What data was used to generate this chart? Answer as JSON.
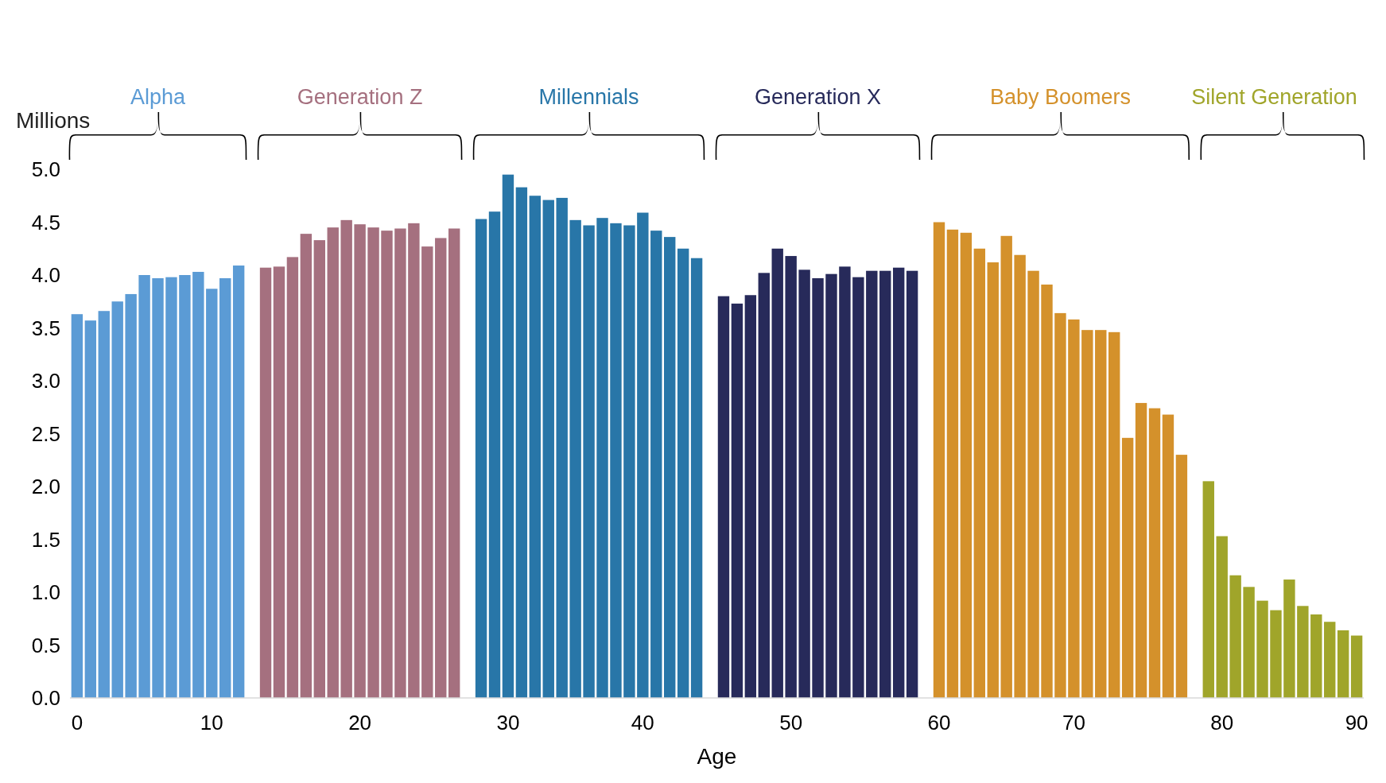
{
  "chart_data": {
    "type": "bar",
    "xlabel": "Age",
    "ylabel": "Millions",
    "categories": [
      "0",
      null,
      null,
      null,
      null,
      null,
      null,
      null,
      null,
      null,
      "10",
      null,
      null,
      null,
      null,
      null,
      null,
      null,
      null,
      null,
      null,
      "20",
      null,
      null,
      null,
      null,
      null,
      null,
      null,
      null,
      null,
      null,
      "30",
      null,
      null,
      null,
      null,
      null,
      null,
      null,
      null,
      null,
      "40",
      null,
      null,
      null,
      null,
      null,
      null,
      null,
      null,
      null,
      null,
      "50",
      null,
      null,
      null,
      null,
      null,
      null,
      null,
      null,
      null,
      null,
      "60",
      null,
      null,
      null,
      null,
      null,
      null,
      null,
      null,
      null,
      "70",
      null,
      null,
      null,
      null,
      null,
      null,
      null,
      null,
      null,
      null,
      "80",
      null,
      null,
      null,
      null,
      null,
      null,
      null,
      null,
      null,
      "90"
    ],
    "series": [
      {
        "name": "Alpha",
        "color": "#5b9bd5",
        "values": [
          3.63,
          3.57,
          3.66,
          3.75,
          3.82,
          4.0,
          3.97,
          3.98,
          4.0,
          4.03,
          3.87,
          3.97,
          4.09,
          null,
          null,
          null,
          null,
          null,
          null,
          null,
          null,
          null,
          null,
          null,
          null,
          null,
          null,
          null,
          null,
          null,
          null,
          null,
          null,
          null,
          null,
          null,
          null,
          null,
          null,
          null,
          null,
          null,
          null,
          null,
          null,
          null,
          null,
          null,
          null,
          null,
          null,
          null,
          null,
          null,
          null,
          null,
          null,
          null,
          null,
          null,
          null,
          null,
          null,
          null,
          null,
          null,
          null,
          null,
          null,
          null,
          null,
          null,
          null,
          null,
          null,
          null,
          null,
          null,
          null,
          null,
          null,
          null,
          null,
          null,
          null,
          null,
          null,
          null,
          null,
          null,
          null,
          null,
          null,
          null,
          null,
          null
        ]
      },
      {
        "name": "Generation Z",
        "color": "#a5707f",
        "values": [
          null,
          null,
          null,
          null,
          null,
          null,
          null,
          null,
          null,
          null,
          null,
          null,
          null,
          null,
          4.07,
          4.08,
          4.17,
          4.39,
          4.33,
          4.45,
          4.52,
          4.48,
          4.45,
          4.42,
          4.44,
          4.49,
          4.27,
          4.35,
          4.44,
          null,
          null,
          null,
          null,
          null,
          null,
          null,
          null,
          null,
          null,
          null,
          null,
          null,
          null,
          null,
          null,
          null,
          null,
          null,
          null,
          null,
          null,
          null,
          null,
          null,
          null,
          null,
          null,
          null,
          null,
          null,
          null,
          null,
          null,
          null,
          null,
          null,
          null,
          null,
          null,
          null,
          null,
          null,
          null,
          null,
          null,
          null,
          null,
          null,
          null,
          null,
          null,
          null,
          null,
          null,
          null,
          null,
          null,
          null,
          null,
          null,
          null,
          null,
          null,
          null,
          null,
          null
        ]
      },
      {
        "name": "Millennials",
        "color": "#2876a8",
        "values": [
          null,
          null,
          null,
          null,
          null,
          null,
          null,
          null,
          null,
          null,
          null,
          null,
          null,
          null,
          null,
          null,
          null,
          null,
          null,
          null,
          null,
          null,
          null,
          null,
          null,
          null,
          null,
          null,
          null,
          null,
          4.53,
          4.6,
          4.95,
          4.83,
          4.75,
          4.71,
          4.73,
          4.52,
          4.47,
          4.54,
          4.49,
          4.47,
          4.59,
          4.42,
          4.36,
          4.25,
          4.16,
          null,
          null,
          null,
          null,
          null,
          null,
          null,
          null,
          null,
          null,
          null,
          null,
          null,
          null,
          null,
          null,
          null,
          null,
          null,
          null,
          null,
          null,
          null,
          null,
          null,
          null,
          null,
          null,
          null,
          null,
          null,
          null,
          null,
          null,
          null,
          null,
          null,
          null,
          null,
          null,
          null,
          null,
          null,
          null,
          null,
          null,
          null,
          null,
          null
        ]
      },
      {
        "name": "Generation X",
        "color": "#272a5a",
        "values": [
          null,
          null,
          null,
          null,
          null,
          null,
          null,
          null,
          null,
          null,
          null,
          null,
          null,
          null,
          null,
          null,
          null,
          null,
          null,
          null,
          null,
          null,
          null,
          null,
          null,
          null,
          null,
          null,
          null,
          null,
          null,
          null,
          null,
          null,
          null,
          null,
          null,
          null,
          null,
          null,
          null,
          null,
          null,
          null,
          null,
          null,
          null,
          null,
          3.8,
          3.73,
          3.81,
          4.02,
          4.25,
          4.18,
          4.05,
          3.97,
          4.01,
          4.08,
          3.98,
          4.04,
          4.04,
          4.07,
          4.04,
          null,
          null,
          null,
          null,
          null,
          null,
          null,
          null,
          null,
          null,
          null,
          null,
          null,
          null,
          null,
          null,
          null,
          null,
          null,
          null,
          null,
          null,
          null,
          null,
          null,
          null,
          null,
          null,
          null,
          null,
          null,
          null,
          null
        ]
      },
      {
        "name": "Baby Boomers",
        "color": "#d4912b",
        "values": [
          null,
          null,
          null,
          null,
          null,
          null,
          null,
          null,
          null,
          null,
          null,
          null,
          null,
          null,
          null,
          null,
          null,
          null,
          null,
          null,
          null,
          null,
          null,
          null,
          null,
          null,
          null,
          null,
          null,
          null,
          null,
          null,
          null,
          null,
          null,
          null,
          null,
          null,
          null,
          null,
          null,
          null,
          null,
          null,
          null,
          null,
          null,
          null,
          null,
          null,
          null,
          null,
          null,
          null,
          null,
          null,
          null,
          null,
          null,
          null,
          null,
          null,
          null,
          null,
          4.5,
          4.43,
          4.4,
          4.25,
          4.12,
          4.37,
          4.19,
          4.04,
          3.91,
          3.64,
          3.58,
          3.48,
          3.48,
          3.46,
          2.46,
          2.79,
          2.74,
          2.68,
          2.3,
          null,
          null,
          null,
          null,
          null,
          null,
          null,
          null,
          null,
          null,
          null,
          null,
          null
        ]
      },
      {
        "name": "Silent Generation",
        "color": "#a0a52a",
        "values": [
          null,
          null,
          null,
          null,
          null,
          null,
          null,
          null,
          null,
          null,
          null,
          null,
          null,
          null,
          null,
          null,
          null,
          null,
          null,
          null,
          null,
          null,
          null,
          null,
          null,
          null,
          null,
          null,
          null,
          null,
          null,
          null,
          null,
          null,
          null,
          null,
          null,
          null,
          null,
          null,
          null,
          null,
          null,
          null,
          null,
          null,
          null,
          null,
          null,
          null,
          null,
          null,
          null,
          null,
          null,
          null,
          null,
          null,
          null,
          null,
          null,
          null,
          null,
          null,
          null,
          null,
          null,
          null,
          null,
          null,
          null,
          null,
          null,
          null,
          null,
          null,
          null,
          null,
          null,
          null,
          null,
          null,
          null,
          null,
          2.05,
          1.53,
          1.16,
          1.05,
          0.92,
          0.83,
          1.12,
          0.87,
          0.79,
          0.72,
          0.64,
          0.59
        ]
      }
    ],
    "ylim": [
      0,
      5
    ],
    "yticks": [
      {
        "value": 0,
        "label": "0.0"
      },
      {
        "value": 0.5,
        "label": "0.5"
      },
      {
        "value": 1,
        "label": "1.0"
      },
      {
        "value": 1.5,
        "label": "1.5"
      },
      {
        "value": 2,
        "label": "2.0"
      },
      {
        "value": 2.5,
        "label": "2.5"
      },
      {
        "value": 3,
        "label": "3.0"
      },
      {
        "value": 3.5,
        "label": "3.5"
      },
      {
        "value": 4,
        "label": "4.0"
      },
      {
        "value": 4.5,
        "label": "4.5"
      },
      {
        "value": 5,
        "label": "5.0"
      }
    ]
  }
}
